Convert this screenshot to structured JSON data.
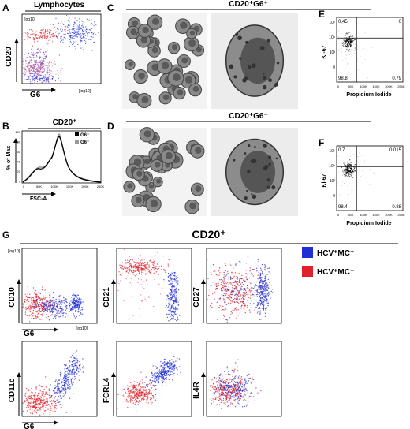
{
  "A": {
    "letter": "A",
    "title": "Lymphocytes",
    "y_label": "CD20",
    "x_label": "G6",
    "y_unit": "[log10]",
    "x_unit": "[log10]"
  },
  "B": {
    "letter": "B",
    "title": "CD20⁺",
    "y_label": "% of Max",
    "x_label": "FSC-A",
    "y_ticks": [
      "100",
      "80",
      "60",
      "40",
      "20",
      "0"
    ],
    "x_ticks": [
      "0",
      "50K",
      "100K",
      "150K",
      "200K",
      "250K"
    ],
    "legend": [
      "G6⁺",
      "G6⁻"
    ]
  },
  "C": {
    "letter": "C",
    "title": "CD20⁺G6⁺"
  },
  "D": {
    "letter": "D",
    "title": "CD20⁺G6⁻"
  },
  "E": {
    "letter": "E",
    "y_label": "Ki-67",
    "x_label": "Propidium Iodide",
    "y_ticks": [
      "10⁵",
      "10⁴",
      "10³",
      "0"
    ],
    "x_ticks": [
      "0",
      "50K",
      "100K",
      "150K",
      "200K",
      "250K"
    ],
    "quadrants": {
      "upper_left": "0.45",
      "upper_right": "0",
      "lower_left": "98.8",
      "lower_right": "0.79"
    }
  },
  "F": {
    "letter": "F",
    "y_label": "Ki-67",
    "x_label": "Propidium Iodide",
    "y_ticks": [
      "10⁵",
      "10⁴",
      "10³",
      "0"
    ],
    "x_ticks": [
      "0",
      "50K",
      "100K",
      "150K",
      "200K",
      "250K"
    ],
    "quadrants": {
      "upper_left": "0.7",
      "upper_right": "0.015",
      "lower_left": "98.4",
      "lower_right": "0.88"
    }
  },
  "G": {
    "letter": "G",
    "title": "CD20⁺",
    "legend": [
      "HCV⁺MC⁺",
      "HCV⁺MC⁻"
    ],
    "x_label": "G6",
    "unit": "[log10]",
    "markers": [
      "CD10",
      "CD21",
      "CD27",
      "CD11c",
      "FCRL4",
      "IL4R"
    ]
  }
}
